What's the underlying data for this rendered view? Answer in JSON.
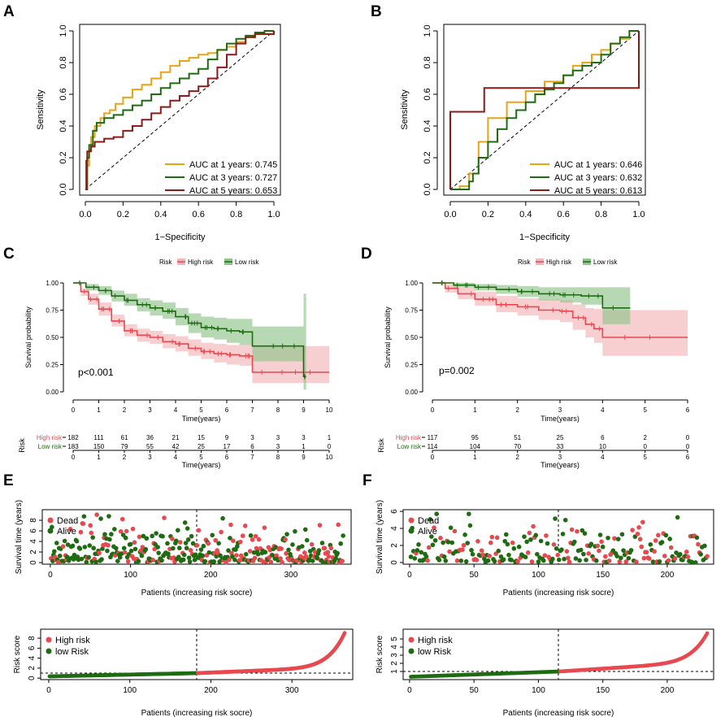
{
  "figure": {
    "colors": {
      "y1": "#E8A317",
      "y3": "#1E6B12",
      "y5": "#8B1A1A",
      "high": "#E8484F",
      "low": "#1E6B12",
      "high_fill": "#F4B6B8",
      "low_fill": "#8FC58A",
      "axis": "#000000"
    }
  },
  "chart_data": [
    {
      "id": "A",
      "panel_label": "A",
      "type": "line",
      "xlabel": "1−Specificity",
      "ylabel": "Sensitivity",
      "xlim": [
        0,
        1
      ],
      "ylim": [
        0,
        1
      ],
      "xticks": [
        "0.0",
        "0.2",
        "0.4",
        "0.6",
        "0.8",
        "1.0"
      ],
      "yticks": [
        "0.0",
        "0.2",
        "0.4",
        "0.6",
        "0.8",
        "1.0"
      ],
      "legend": [
        "AUC at 1 years: 0.745",
        "AUC at 3 years: 0.727",
        "AUC at 5 years: 0.653"
      ],
      "series": [
        {
          "name": "1 years",
          "color": "y1",
          "x": [
            0,
            0.01,
            0.02,
            0.03,
            0.05,
            0.08,
            0.1,
            0.13,
            0.16,
            0.2,
            0.25,
            0.3,
            0.35,
            0.4,
            0.45,
            0.5,
            0.55,
            0.6,
            0.65,
            0.7,
            0.75,
            0.8,
            0.85,
            0.9,
            1.0
          ],
          "y": [
            0,
            0.15,
            0.25,
            0.33,
            0.4,
            0.45,
            0.48,
            0.5,
            0.54,
            0.58,
            0.63,
            0.66,
            0.7,
            0.74,
            0.78,
            0.81,
            0.83,
            0.85,
            0.86,
            0.88,
            0.9,
            0.93,
            0.96,
            0.98,
            1.0
          ]
        },
        {
          "name": "3 years",
          "color": "y3",
          "x": [
            0,
            0.01,
            0.02,
            0.04,
            0.06,
            0.1,
            0.15,
            0.2,
            0.25,
            0.3,
            0.35,
            0.4,
            0.45,
            0.5,
            0.55,
            0.6,
            0.65,
            0.7,
            0.75,
            0.8,
            0.85,
            0.9,
            0.95,
            1.0
          ],
          "y": [
            0,
            0.2,
            0.28,
            0.37,
            0.42,
            0.45,
            0.47,
            0.5,
            0.53,
            0.56,
            0.6,
            0.64,
            0.67,
            0.7,
            0.73,
            0.76,
            0.82,
            0.88,
            0.92,
            0.95,
            0.97,
            0.99,
            1.0,
            1.0
          ]
        },
        {
          "name": "5 years",
          "color": "y5",
          "x": [
            0,
            0.005,
            0.01,
            0.03,
            0.05,
            0.1,
            0.15,
            0.2,
            0.25,
            0.3,
            0.35,
            0.4,
            0.45,
            0.5,
            0.55,
            0.6,
            0.65,
            0.7,
            0.75,
            0.8,
            0.85,
            0.9,
            1.0
          ],
          "y": [
            0,
            0.18,
            0.24,
            0.27,
            0.3,
            0.32,
            0.33,
            0.37,
            0.4,
            0.44,
            0.48,
            0.52,
            0.56,
            0.59,
            0.62,
            0.65,
            0.7,
            0.77,
            0.85,
            0.92,
            0.96,
            0.98,
            1.0
          ]
        }
      ]
    },
    {
      "id": "B",
      "panel_label": "B",
      "type": "line",
      "xlabel": "1−Specificity",
      "ylabel": "Sensitivity",
      "xlim": [
        0,
        1
      ],
      "ylim": [
        0,
        1
      ],
      "xticks": [
        "0.0",
        "0.2",
        "0.4",
        "0.6",
        "0.8",
        "1.0"
      ],
      "yticks": [
        "0.0",
        "0.2",
        "0.4",
        "0.6",
        "0.8",
        "1.0"
      ],
      "legend": [
        "AUC at 1 years: 0.646",
        "AUC at 3 years: 0.632",
        "AUC at 5 years: 0.613"
      ],
      "series": [
        {
          "name": "1 years",
          "color": "y1",
          "x": [
            0,
            0.05,
            0.1,
            0.15,
            0.2,
            0.3,
            0.4,
            0.5,
            0.6,
            0.65,
            0.7,
            0.75,
            0.8,
            0.85,
            0.9,
            0.95,
            1.0
          ],
          "y": [
            0,
            0.02,
            0.1,
            0.3,
            0.45,
            0.55,
            0.62,
            0.68,
            0.72,
            0.78,
            0.8,
            0.85,
            0.88,
            0.92,
            0.95,
            1.0,
            1.0
          ]
        },
        {
          "name": "3 years",
          "color": "y3",
          "x": [
            0,
            0.1,
            0.12,
            0.15,
            0.2,
            0.25,
            0.3,
            0.35,
            0.4,
            0.45,
            0.5,
            0.55,
            0.6,
            0.65,
            0.7,
            0.75,
            0.8,
            0.85,
            0.9,
            0.95,
            1.0
          ],
          "y": [
            0,
            0.05,
            0.1,
            0.2,
            0.3,
            0.38,
            0.45,
            0.5,
            0.55,
            0.6,
            0.63,
            0.67,
            0.72,
            0.75,
            0.78,
            0.8,
            0.85,
            0.92,
            0.96,
            1.0,
            1.0
          ]
        },
        {
          "name": "5 years",
          "color": "y5",
          "x": [
            0,
            0,
            0.18,
            0.18,
            1.0,
            1.0
          ],
          "y": [
            0,
            0.49,
            0.49,
            0.64,
            0.64,
            1.0
          ]
        }
      ]
    },
    {
      "id": "C",
      "panel_label": "C",
      "type": "line",
      "xlabel": "Time(years)",
      "ylabel": "Survival probability",
      "legend_title": "Risk",
      "legend": [
        "High risk",
        "Low risk"
      ],
      "annotation": "p<0.001",
      "xlim": [
        0,
        10
      ],
      "ylim": [
        0,
        1
      ],
      "xticks": [
        "0",
        "1",
        "2",
        "3",
        "4",
        "5",
        "6",
        "7",
        "8",
        "9",
        "10"
      ],
      "yticks": [
        "0.00",
        "0.25",
        "0.50",
        "0.75",
        "1.00"
      ],
      "series": [
        {
          "name": "High risk",
          "color": "high",
          "x": [
            0,
            0.3,
            0.6,
            1,
            1.5,
            2,
            2.5,
            3,
            3.5,
            4,
            4.5,
            5,
            5.5,
            6,
            6.5,
            7,
            9,
            10
          ],
          "y": [
            1,
            0.92,
            0.85,
            0.76,
            0.65,
            0.56,
            0.52,
            0.5,
            0.46,
            0.44,
            0.4,
            0.37,
            0.35,
            0.34,
            0.33,
            0.18,
            0.18,
            0.18
          ],
          "lower": [
            1,
            0.88,
            0.8,
            0.7,
            0.6,
            0.51,
            0.46,
            0.44,
            0.4,
            0.37,
            0.33,
            0.3,
            0.27,
            0.25,
            0.24,
            0.08,
            0.08,
            0.08
          ],
          "upper": [
            1,
            0.95,
            0.9,
            0.82,
            0.71,
            0.62,
            0.58,
            0.56,
            0.53,
            0.51,
            0.48,
            0.45,
            0.44,
            0.43,
            0.43,
            0.42,
            0.42,
            0.42
          ]
        },
        {
          "name": "Low risk",
          "color": "low",
          "x": [
            0,
            0.5,
            1,
            1.5,
            2,
            2.5,
            3,
            3.5,
            4,
            4.5,
            5,
            5.5,
            6,
            6.5,
            7,
            8,
            9,
            9.1
          ],
          "y": [
            1,
            0.96,
            0.93,
            0.88,
            0.84,
            0.8,
            0.77,
            0.74,
            0.69,
            0.63,
            0.59,
            0.58,
            0.56,
            0.55,
            0.42,
            0.42,
            0.14,
            0.14
          ],
          "lower": [
            1,
            0.93,
            0.89,
            0.83,
            0.79,
            0.74,
            0.7,
            0.67,
            0.61,
            0.54,
            0.5,
            0.48,
            0.45,
            0.43,
            0.28,
            0.28,
            0.02,
            0.02
          ],
          "upper": [
            1,
            0.99,
            0.97,
            0.93,
            0.9,
            0.86,
            0.84,
            0.82,
            0.77,
            0.72,
            0.69,
            0.68,
            0.67,
            0.67,
            0.6,
            0.6,
            0.9,
            0.9
          ]
        }
      ],
      "risk_table": {
        "title": "Risk",
        "rows": [
          {
            "name": "High risk",
            "color": "high",
            "values": [
              "182",
              "111",
              "61",
              "36",
              "21",
              "15",
              "9",
              "3",
              "3",
              "3",
              "1"
            ]
          },
          {
            "name": "Low risk",
            "color": "low",
            "values": [
              "183",
              "150",
              "79",
              "55",
              "42",
              "25",
              "17",
              "6",
              "3",
              "1",
              "0"
            ]
          }
        ],
        "xlabel": "Time(years)"
      }
    },
    {
      "id": "D",
      "panel_label": "D",
      "type": "line",
      "xlabel": "Time(years)",
      "ylabel": "Survival probability",
      "legend_title": "Risk",
      "legend": [
        "High risk",
        "Low risk"
      ],
      "annotation": "p=0.002",
      "xlim": [
        0,
        6
      ],
      "ylim": [
        0,
        1
      ],
      "xticks": [
        "0",
        "1",
        "2",
        "3",
        "4",
        "5",
        "6"
      ],
      "yticks": [
        "0.00",
        "0.25",
        "0.50",
        "0.75",
        "1.00"
      ],
      "series": [
        {
          "name": "High risk",
          "color": "high",
          "x": [
            0,
            0.3,
            0.6,
            1,
            1.5,
            2,
            2.5,
            3,
            3.3,
            3.6,
            3.8,
            4,
            6
          ],
          "y": [
            1,
            0.95,
            0.9,
            0.85,
            0.8,
            0.78,
            0.75,
            0.74,
            0.68,
            0.62,
            0.58,
            0.5,
            0.5
          ],
          "lower": [
            1,
            0.91,
            0.85,
            0.79,
            0.73,
            0.7,
            0.66,
            0.64,
            0.57,
            0.5,
            0.45,
            0.33,
            0.33
          ],
          "upper": [
            1,
            0.99,
            0.96,
            0.92,
            0.88,
            0.86,
            0.85,
            0.84,
            0.8,
            0.77,
            0.76,
            0.75,
            0.75
          ]
        },
        {
          "name": "Low risk",
          "color": "low",
          "x": [
            0,
            0.5,
            1,
            1.5,
            2,
            2.5,
            3,
            3.5,
            4,
            4.65
          ],
          "y": [
            1,
            0.98,
            0.96,
            0.94,
            0.92,
            0.9,
            0.89,
            0.88,
            0.77,
            0.77
          ],
          "lower": [
            1,
            0.96,
            0.93,
            0.9,
            0.87,
            0.84,
            0.82,
            0.8,
            0.62,
            0.62
          ],
          "upper": [
            1,
            1,
            0.99,
            0.98,
            0.97,
            0.96,
            0.96,
            0.96,
            0.96,
            0.96
          ]
        }
      ],
      "risk_table": {
        "title": "Risk",
        "rows": [
          {
            "name": "High risk",
            "color": "high",
            "values": [
              "117",
              "95",
              "51",
              "25",
              "6",
              "2",
              "0"
            ]
          },
          {
            "name": "Low risk",
            "color": "low",
            "values": [
              "114",
              "104",
              "70",
              "33",
              "10",
              "0",
              "0"
            ]
          }
        ],
        "xlabel": "Time(years)"
      }
    },
    {
      "id": "E1",
      "panel_label": "E",
      "type": "scatter",
      "xlabel": "Patients (increasing risk socre)",
      "ylabel": "Survival time (years)",
      "xlim": [
        -10,
        375
      ],
      "ylim": [
        -0.3,
        10
      ],
      "xticks": [
        "0",
        "100",
        "200",
        "300"
      ],
      "yticks": [
        "0",
        "2",
        "4",
        "6",
        "8"
      ],
      "cutoff": 182.5,
      "n": 365,
      "seed": 11,
      "legend": [
        "Dead",
        "Alive"
      ]
    },
    {
      "id": "F1",
      "panel_label": "F",
      "type": "scatter",
      "xlabel": "Patients (increasing risk socre)",
      "ylabel": "Survival time (years)",
      "xlim": [
        -5,
        236
      ],
      "ylim": [
        -0.2,
        6.2
      ],
      "xticks": [
        "0",
        "50",
        "100",
        "150",
        "200"
      ],
      "yticks": [
        "0",
        "2",
        "4",
        "6"
      ],
      "cutoff": 115.5,
      "n": 231,
      "seed": 23,
      "legend": [
        "Dead",
        "Alive"
      ]
    },
    {
      "id": "E2",
      "type": "scatter",
      "xlabel": "Patients (increasing risk socre)",
      "ylabel": "Risk score",
      "xlim": [
        -10,
        375
      ],
      "ylim": [
        -0.3,
        9.8
      ],
      "xticks": [
        "0",
        "100",
        "200",
        "300"
      ],
      "yticks": [
        "0",
        "2",
        "4",
        "6",
        "8"
      ],
      "cutoff": 182.5,
      "cutoff_score": 1.0,
      "n": 365,
      "legend": [
        "High risk",
        "low Risk"
      ]
    },
    {
      "id": "F2",
      "type": "scatter",
      "xlabel": "Patients (increasing risk socre)",
      "ylabel": "Risk score",
      "xlim": [
        -5,
        236
      ],
      "ylim": [
        0,
        6.2
      ],
      "xticks": [
        "0",
        "50",
        "100",
        "150",
        "200"
      ],
      "yticks": [
        "1",
        "2",
        "3",
        "4",
        "5"
      ],
      "cutoff": 115.5,
      "cutoff_score": 1.0,
      "n": 231,
      "legend": [
        "High risk",
        "low Risk"
      ]
    }
  ]
}
